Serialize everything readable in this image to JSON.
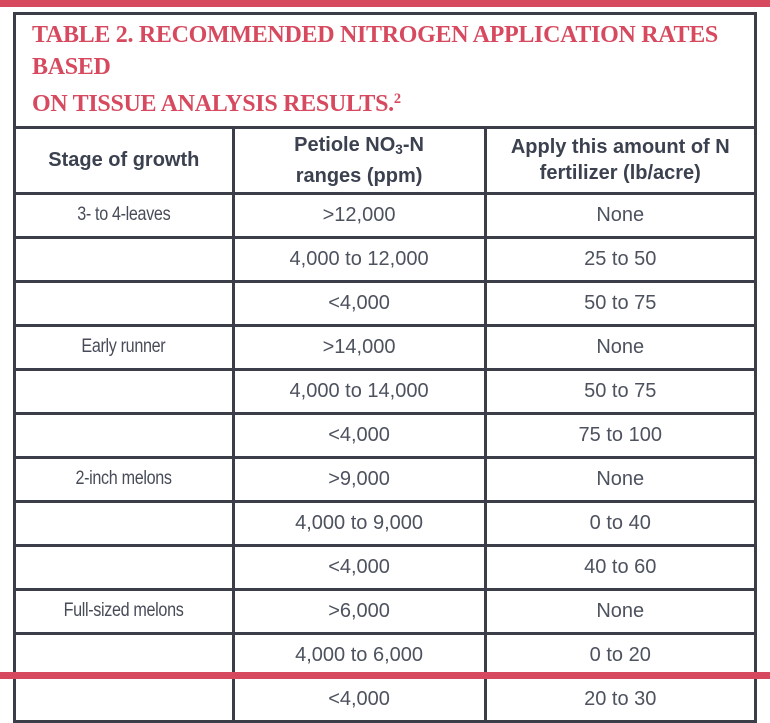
{
  "page": {
    "accent_color": "#d6495e",
    "border_color": "#3b3e49"
  },
  "title": {
    "line1": "TABLE 2. RECOMMENDED NITROGEN APPLICATION RATES BASED",
    "line2": "ON TISSUE ANALYSIS RESULTS.",
    "footnote_marker": "2"
  },
  "header": {
    "col1": "Stage of growth",
    "col2": {
      "prefix": "Petiole NO",
      "sub": "3",
      "suffix": "-N",
      "line2": "ranges (ppm)"
    },
    "col3": {
      "line1": "Apply this amount of N",
      "line2": "fertilizer (lb/acre)"
    }
  },
  "table": {
    "rows": [
      {
        "stage": "3- to 4-leaves",
        "range": ">12,000",
        "rate": "None"
      },
      {
        "stage": "",
        "range": "4,000 to 12,000",
        "rate": "25 to 50"
      },
      {
        "stage": "",
        "range": "<4,000",
        "rate": "50 to 75"
      },
      {
        "stage": "Early runner",
        "range": ">14,000",
        "rate": "None"
      },
      {
        "stage": "",
        "range": "4,000 to 14,000",
        "rate": "50 to 75"
      },
      {
        "stage": "",
        "range": "<4,000",
        "rate": "75 to 100"
      },
      {
        "stage": "2-inch melons",
        "range": ">9,000",
        "rate": "None"
      },
      {
        "stage": "",
        "range": "4,000 to 9,000",
        "rate": "0 to 40"
      },
      {
        "stage": "",
        "range": "<4,000",
        "rate": "40 to 60"
      },
      {
        "stage": "Full-sized melons",
        "range": ">6,000",
        "rate": "None"
      },
      {
        "stage": "",
        "range": "4,000 to 6,000",
        "rate": "0 to 20"
      },
      {
        "stage": "",
        "range": "<4,000",
        "rate": "20 to 30"
      }
    ]
  }
}
